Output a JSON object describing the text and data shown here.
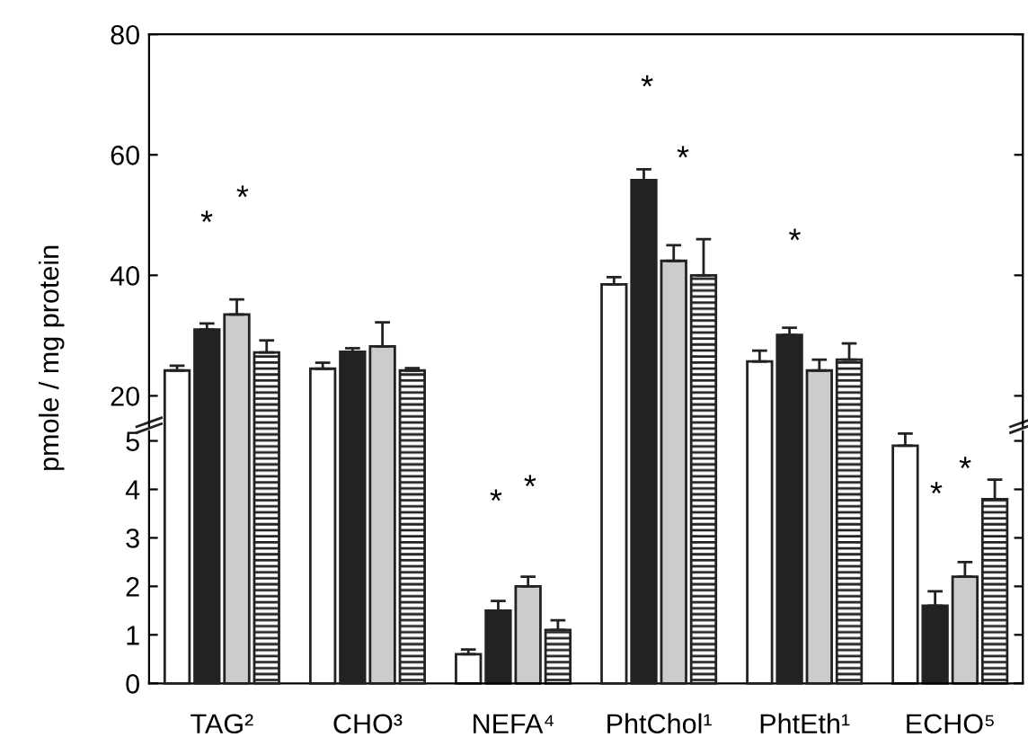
{
  "chart_data": [
    {
      "type": "bar",
      "ylabel": "pmole / mg protein",
      "series": [
        {
          "color": "#ffffff",
          "values": [
            24.2,
            24.5,
            null,
            38.5,
            25.7,
            null
          ],
          "errors": [
            0.8,
            1.0,
            null,
            1.2,
            1.8,
            null
          ]
        },
        {
          "color": "#222222",
          "values": [
            31,
            27.3,
            null,
            55.8,
            30.1,
            null
          ],
          "errors": [
            1.0,
            0.6,
            null,
            1.8,
            1.2,
            null
          ]
        },
        {
          "color": "#cccccc",
          "values": [
            33.5,
            28.2,
            null,
            42.4,
            24.2,
            null
          ],
          "errors": [
            2.5,
            4.0,
            null,
            2.6,
            1.8,
            null
          ]
        },
        {
          "color": "#222222",
          "values": [
            27.2,
            24.2,
            null,
            40,
            26,
            null
          ],
          "errors": [
            2.0,
            0.4,
            null,
            6.0,
            2.7,
            null
          ]
        }
      ],
      "ylim": [
        15,
        80
      ],
      "yticks": [
        20,
        40,
        60,
        80
      ],
      "tick_labels": "y",
      "grid": false,
      "annotations": [
        "*",
        "*",
        "*",
        "*",
        "*"
      ]
    },
    {
      "type": "bar",
      "categories": [
        "TAG²",
        "CHO³",
        "NEFA⁴",
        "PhtChol¹",
        "PhtEth¹",
        "ECHO⁵"
      ],
      "series": [
        {
          "color": "#ffffff",
          "values": [
            null,
            null,
            0.6,
            null,
            null,
            4.9
          ],
          "errors": [
            null,
            null,
            0.1,
            null,
            null,
            0.25
          ]
        },
        {
          "color": "#222222",
          "values": [
            null,
            null,
            1.5,
            null,
            null,
            1.6
          ],
          "errors": [
            null,
            null,
            0.2,
            null,
            null,
            0.3
          ]
        },
        {
          "color": "#cccccc",
          "values": [
            null,
            null,
            2.0,
            null,
            null,
            2.2
          ],
          "errors": [
            null,
            null,
            0.2,
            null,
            null,
            0.3
          ]
        },
        {
          "color": "#222222",
          "values": [
            null,
            null,
            1.1,
            null,
            null,
            3.8
          ],
          "errors": [
            null,
            null,
            0.2,
            null,
            null,
            0.4
          ]
        }
      ],
      "ylim": [
        0,
        5.2
      ],
      "yticks": [
        0,
        1,
        2,
        3,
        4,
        5
      ],
      "grid": false,
      "annotations": [
        "*",
        "*",
        "*",
        "*"
      ]
    }
  ]
}
